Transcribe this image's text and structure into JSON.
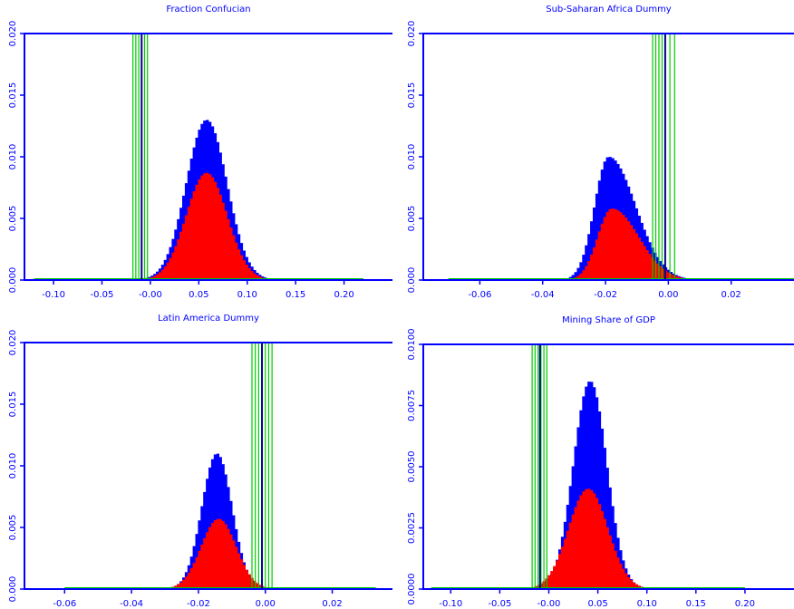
{
  "chart_data": [
    {
      "type": "bar",
      "title": "Fraction Confucian",
      "xlabel": "",
      "ylabel": "",
      "xlim": [
        -0.13,
        0.25
      ],
      "ylim": [
        0,
        0.02
      ],
      "xticks": [
        "-0.10",
        "-0.05",
        "-0.00",
        "0.05",
        "0.10",
        "0.15",
        "0.20"
      ],
      "yticks": [
        "0.000",
        "0.005",
        "0.010",
        "0.015",
        "0.020"
      ],
      "grid": false,
      "series": [
        {
          "color": "#0000ff",
          "peak_x": 0.058,
          "sigma": 0.021,
          "peak_y": 0.013,
          "support": [
            -0.02,
            0.14
          ]
        },
        {
          "color": "#ff0000",
          "peak_x": 0.058,
          "sigma": 0.021,
          "peak_y": 0.0087,
          "support": [
            -0.02,
            0.14
          ]
        }
      ],
      "vertical_lines": {
        "color": "#00cc00",
        "range": [
          -0.12,
          0.22
        ],
        "cluster": [
          -0.018,
          -0.015,
          -0.012,
          -0.009,
          -0.006,
          -0.003
        ],
        "center": -0.009
      }
    },
    {
      "type": "bar",
      "title": "Sub-Saharan Africa Dummy",
      "xlabel": "",
      "ylabel": "",
      "xlim": [
        -0.078,
        0.04
      ],
      "ylim": [
        0,
        0.02
      ],
      "xticks": [
        "-0.06",
        "-0.04",
        "-0.02",
        "0.00",
        "0.02"
      ],
      "yticks": [
        "0.000",
        "0.005",
        "0.010",
        "0.015",
        "0.020"
      ],
      "grid": false,
      "series": [
        {
          "color": "#0000ff",
          "peak_x": -0.019,
          "sigma_left": 0.0045,
          "sigma_right": 0.0085,
          "peak_y": 0.01,
          "support": [
            -0.036,
            0.006
          ]
        },
        {
          "color": "#ff0000",
          "peak_x": -0.018,
          "sigma_left": 0.0045,
          "sigma_right": 0.0085,
          "peak_y": 0.0058,
          "support": [
            -0.036,
            0.006
          ]
        }
      ],
      "vertical_lines": {
        "color": "#00cc00",
        "range": [
          -0.07,
          0.04
        ],
        "cluster": [
          -0.005,
          -0.004,
          -0.003,
          -0.002,
          -0.001,
          0.0005,
          0.002
        ],
        "center": -0.001
      }
    },
    {
      "type": "bar",
      "title": "Latin America Dummy",
      "xlabel": "",
      "ylabel": "",
      "xlim": [
        -0.072,
        0.038
      ],
      "ylim": [
        0,
        0.02
      ],
      "xticks": [
        "-0.06",
        "-0.04",
        "-0.02",
        "0.00",
        "0.02"
      ],
      "yticks": [
        "0.000",
        "0.005",
        "0.010",
        "0.015",
        "0.020"
      ],
      "grid": false,
      "series": [
        {
          "color": "#0000ff",
          "peak_x": -0.0145,
          "sigma": 0.0045,
          "peak_y": 0.011,
          "support": [
            -0.03,
            0.01
          ]
        },
        {
          "color": "#ff0000",
          "peak_x": -0.014,
          "sigma": 0.0052,
          "peak_y": 0.0057,
          "support": [
            -0.03,
            0.01
          ]
        }
      ],
      "vertical_lines": {
        "color": "#00cc00",
        "range": [
          -0.06,
          0.033
        ],
        "cluster": [
          -0.004,
          -0.003,
          -0.002,
          -0.001,
          0.0,
          0.001,
          0.002
        ],
        "center": -0.001
      }
    },
    {
      "type": "bar",
      "title": "Mining Share of GDP",
      "xlabel": "",
      "ylabel": "",
      "xlim": [
        -0.128,
        0.25
      ],
      "ylim": [
        0,
        0.01
      ],
      "xticks": [
        "-0.10",
        "-0.05",
        "-0.00",
        "0.05",
        "0.10",
        "0.15",
        "0.20"
      ],
      "yticks": [
        "0.0000",
        "0.0025",
        "0.0050",
        "0.0075",
        "0.0100"
      ],
      "grid": false,
      "series": [
        {
          "color": "#0000ff",
          "peak_x": 0.042,
          "sigma": 0.017,
          "peak_y": 0.0085,
          "support": [
            -0.02,
            0.11
          ]
        },
        {
          "color": "#ff0000",
          "peak_x": 0.04,
          "sigma": 0.02,
          "peak_y": 0.0041,
          "support": [
            -0.02,
            0.11
          ]
        }
      ],
      "vertical_lines": {
        "color": "#00cc00",
        "range": [
          -0.12,
          0.2
        ],
        "cluster": [
          -0.017,
          -0.014,
          -0.011,
          -0.008,
          -0.005,
          -0.002
        ],
        "center": -0.009
      }
    }
  ]
}
